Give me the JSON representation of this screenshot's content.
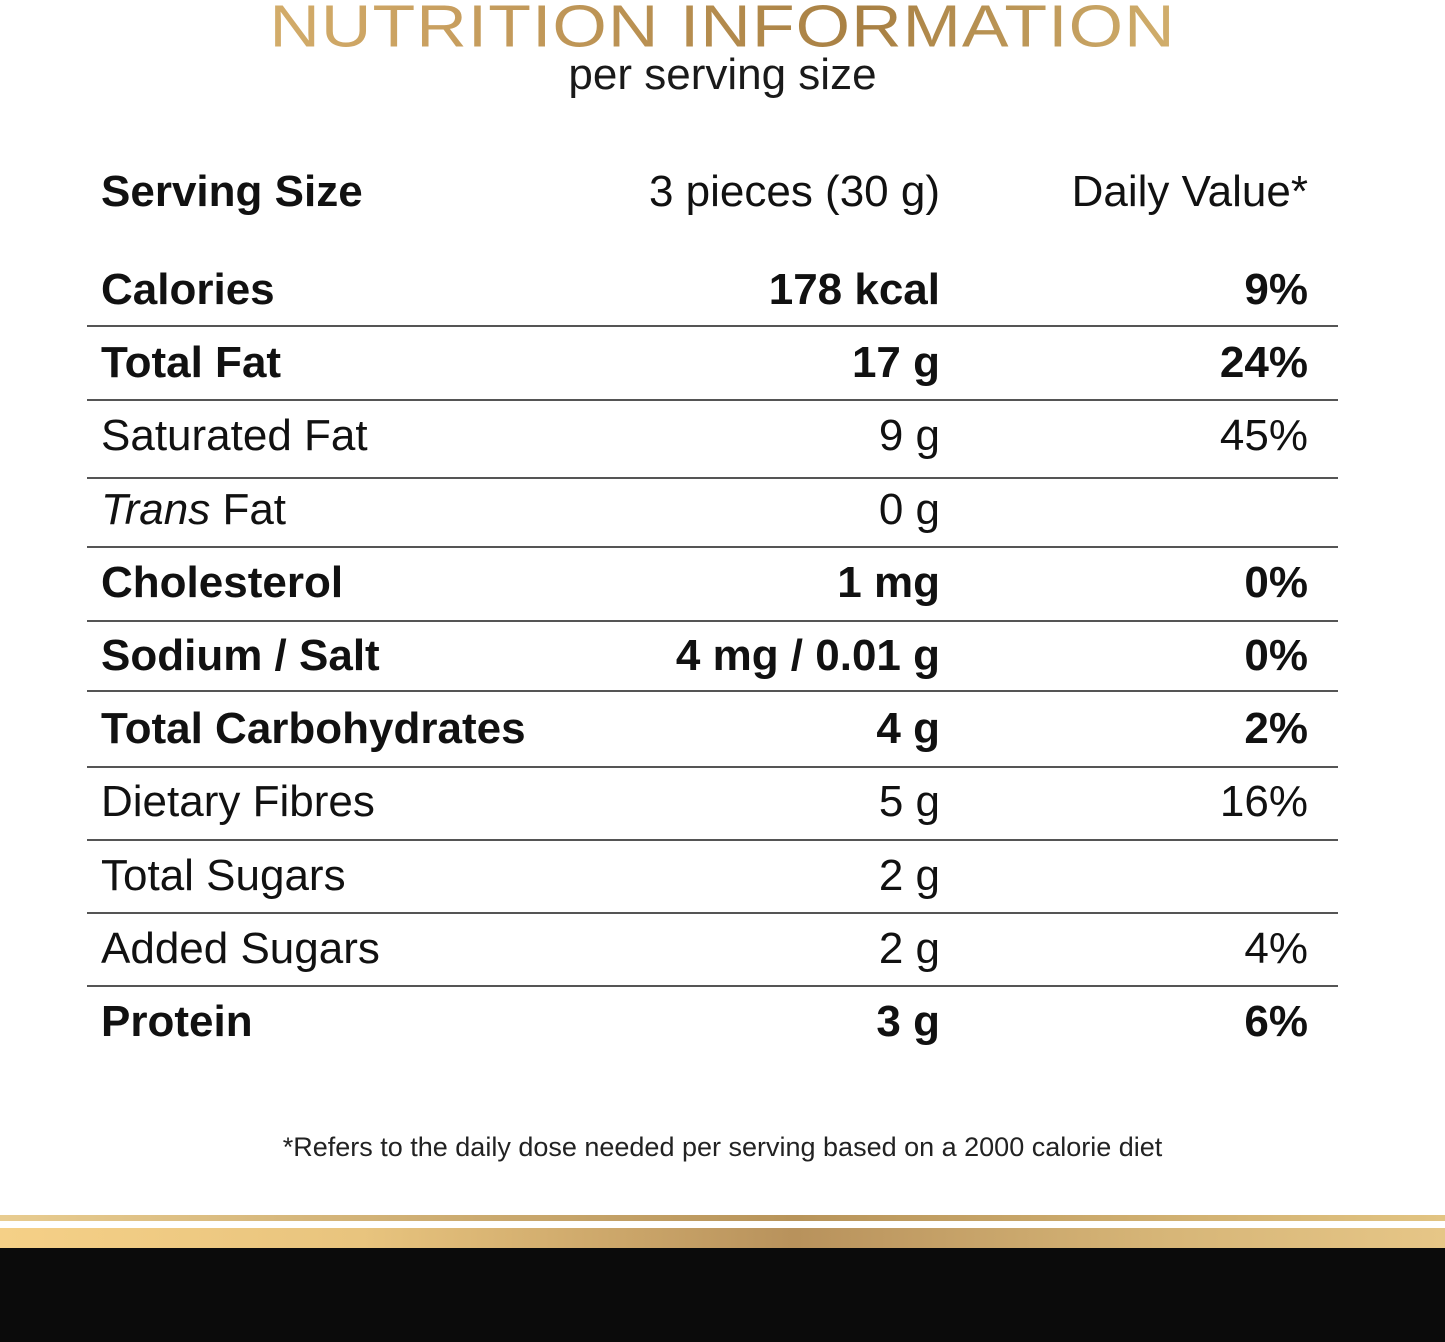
{
  "header": {
    "title": "NUTRITION INFORMATION",
    "subtitle": "per serving size"
  },
  "table": {
    "serving": {
      "label": "Serving Size",
      "amount": "3 pieces (30 g)",
      "dv_header": "Daily Value*"
    },
    "rows": [
      {
        "label": "Calories",
        "amount": "178 kcal",
        "dv": "9%",
        "bold": true
      },
      {
        "label": "Total Fat",
        "amount": "17 g",
        "dv": "24%",
        "bold": true
      },
      {
        "label": "Saturated Fat",
        "amount": "9 g",
        "dv": "45%",
        "bold": false
      },
      {
        "label_italic": "Trans",
        "label": " Fat",
        "amount": "0 g",
        "dv": "",
        "bold": false
      },
      {
        "label": "Cholesterol",
        "amount": "1 mg",
        "dv": "0%",
        "bold": true
      },
      {
        "label": "Sodium / Salt",
        "amount": "4 mg / 0.01 g",
        "dv": "0%",
        "bold": true
      },
      {
        "label": "Total Carbohydrates",
        "amount": "4 g",
        "dv": "2%",
        "bold": true
      },
      {
        "label": "Dietary Fibres",
        "amount": "5 g",
        "dv": "16%",
        "bold": false
      },
      {
        "label": "Total Sugars",
        "amount": "2 g",
        "dv": "",
        "bold": false
      },
      {
        "label": "Added Sugars",
        "amount": "2 g",
        "dv": "4%",
        "bold": false
      },
      {
        "label": "Protein",
        "amount": "3 g",
        "dv": "6%",
        "bold": true
      }
    ]
  },
  "footnote": "*Refers to the daily dose needed per serving based on a 2000 calorie diet",
  "colors": {
    "gold": "#c9a060",
    "footer": "#0b0b0b"
  }
}
